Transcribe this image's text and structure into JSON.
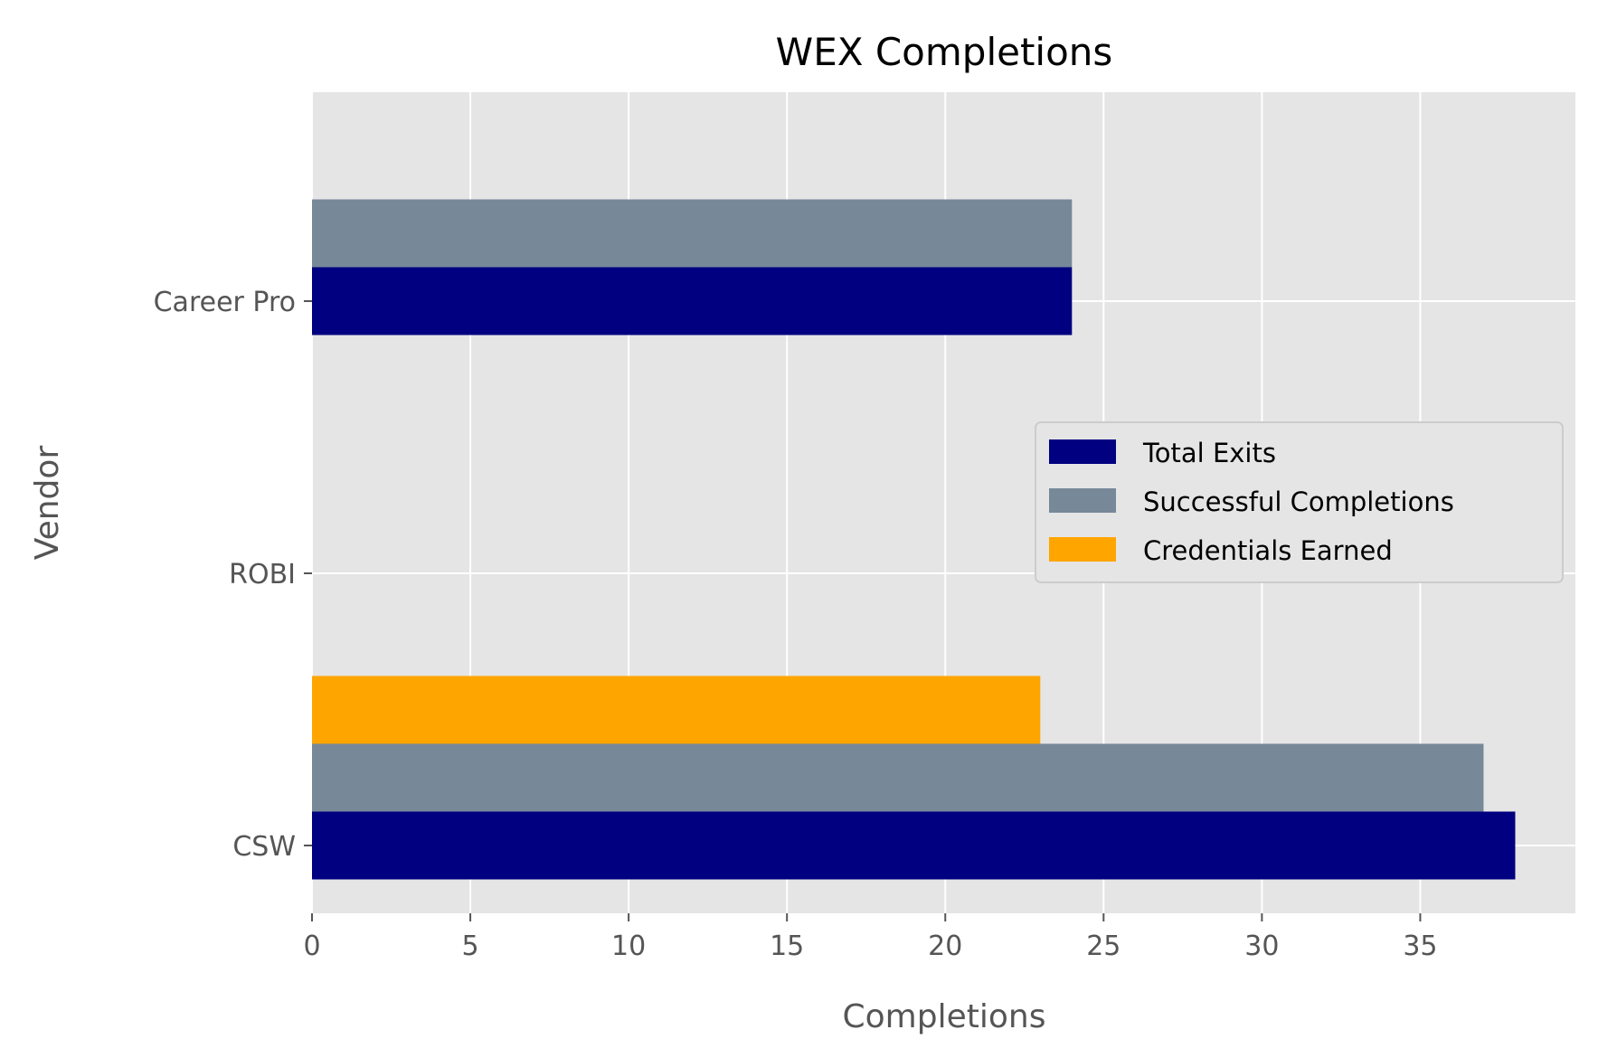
{
  "chart_data": {
    "type": "bar",
    "orientation": "horizontal",
    "title": "WEX Completions",
    "xlabel": "Completions",
    "ylabel": "Vendor",
    "categories": [
      "CSW",
      "ROBI",
      "Career Pro"
    ],
    "series": [
      {
        "name": "Total Exits",
        "values": [
          38,
          0,
          24
        ],
        "color": "#000080"
      },
      {
        "name": "Successful Completions",
        "values": [
          37,
          0,
          24
        ],
        "color": "#778899"
      },
      {
        "name": "Credentials Earned",
        "values": [
          23,
          0,
          0
        ],
        "color": "#FFA500"
      }
    ],
    "xlim": [
      0,
      39.9
    ],
    "xticks": [
      0,
      5,
      10,
      15,
      20,
      25,
      30,
      35
    ],
    "grid": true,
    "legend_position": "center-right",
    "background": "#E5E5E5"
  }
}
